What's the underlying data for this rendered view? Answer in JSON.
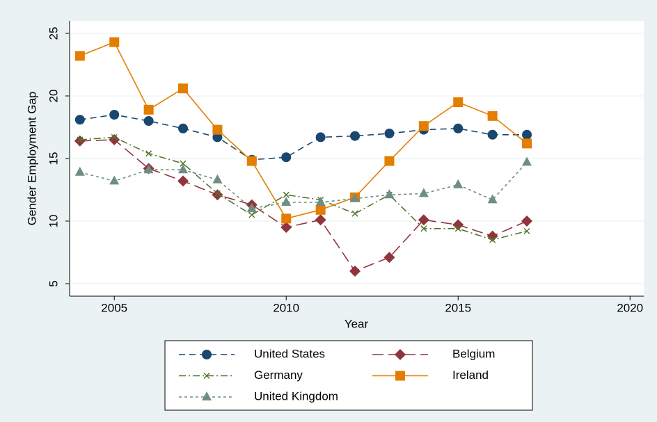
{
  "chart_data": {
    "type": "line",
    "x_label": "Year",
    "y_label": "Gender Employment Gap",
    "x": [
      2004,
      2005,
      2006,
      2007,
      2008,
      2009,
      2010,
      2011,
      2012,
      2013,
      2014,
      2015,
      2016,
      2017
    ],
    "xlim": [
      2003.7,
      2020.4
    ],
    "xticks": [
      2005,
      2010,
      2015,
      2020
    ],
    "ylim": [
      4,
      26
    ],
    "yticks": [
      5,
      10,
      15,
      20,
      25
    ],
    "grid": true,
    "series": [
      {
        "name": "United States",
        "color": "#1a476f",
        "marker": "circle",
        "dash": "dash",
        "values": [
          18.1,
          18.5,
          18.0,
          17.4,
          16.7,
          14.9,
          15.1,
          16.7,
          16.8,
          17.0,
          17.3,
          17.4,
          16.9,
          16.9
        ]
      },
      {
        "name": "Belgium",
        "color": "#90353b",
        "marker": "diamond",
        "dash": "longdash",
        "values": [
          16.4,
          16.5,
          14.2,
          13.2,
          12.1,
          11.3,
          9.5,
          10.1,
          6.0,
          7.1,
          10.1,
          9.7,
          8.8,
          10.0
        ]
      },
      {
        "name": "Germany",
        "color": "#55752f",
        "marker": "x",
        "dash": "dashdot",
        "values": [
          16.5,
          16.7,
          15.4,
          14.6,
          12.2,
          10.5,
          12.1,
          11.7,
          10.6,
          12.1,
          9.4,
          9.4,
          8.5,
          9.2
        ]
      },
      {
        "name": "Ireland",
        "color": "#e37e00",
        "marker": "square",
        "dash": "solid",
        "values": [
          23.2,
          24.3,
          18.9,
          20.6,
          17.3,
          14.8,
          10.2,
          10.9,
          11.9,
          14.8,
          17.6,
          19.5,
          18.4,
          16.2
        ]
      },
      {
        "name": "United Kingdom",
        "color": "#6e8e84",
        "marker": "triangle",
        "dash": "shortdash",
        "values": [
          13.9,
          13.2,
          14.1,
          14.1,
          13.3,
          11.0,
          11.5,
          11.5,
          11.8,
          12.1,
          12.2,
          12.9,
          11.7,
          14.7
        ]
      }
    ]
  }
}
